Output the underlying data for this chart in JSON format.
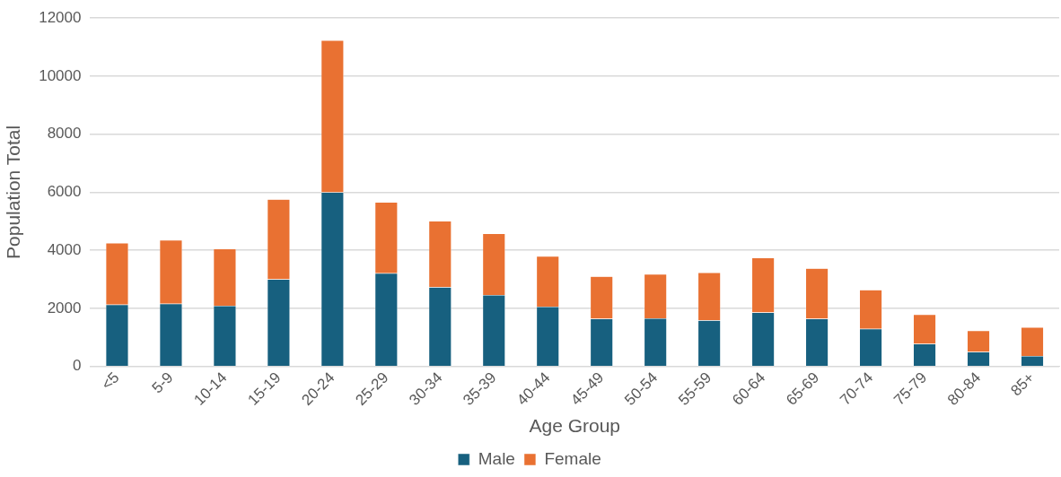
{
  "chart_data": {
    "type": "bar",
    "stacked": true,
    "xlabel": "Age Group",
    "ylabel": "Population Total",
    "categories": [
      "<5",
      "5-9",
      "10-14",
      "15-19",
      "20-24",
      "25-29",
      "30-34",
      "35-39",
      "40-44",
      "45-49",
      "50-54",
      "55-59",
      "60-64",
      "65-69",
      "70-74",
      "75-79",
      "80-84",
      "85+"
    ],
    "series": [
      {
        "name": "Male",
        "color": "#17607f",
        "values": [
          2130,
          2160,
          2090,
          3000,
          6000,
          3210,
          2730,
          2460,
          2060,
          1640,
          1660,
          1590,
          1860,
          1640,
          1290,
          780,
          500,
          360
        ]
      },
      {
        "name": "Female",
        "color": "#e97132",
        "values": [
          2120,
          2190,
          1960,
          2760,
          5230,
          2450,
          2280,
          2120,
          1740,
          1460,
          1520,
          1640,
          1880,
          1740,
          1350,
          1010,
          730,
          990
        ]
      }
    ],
    "ylim": [
      0,
      12000
    ],
    "yticks": [
      0,
      2000,
      4000,
      6000,
      8000,
      10000,
      12000
    ],
    "grid": "y",
    "legend": "bottom"
  }
}
